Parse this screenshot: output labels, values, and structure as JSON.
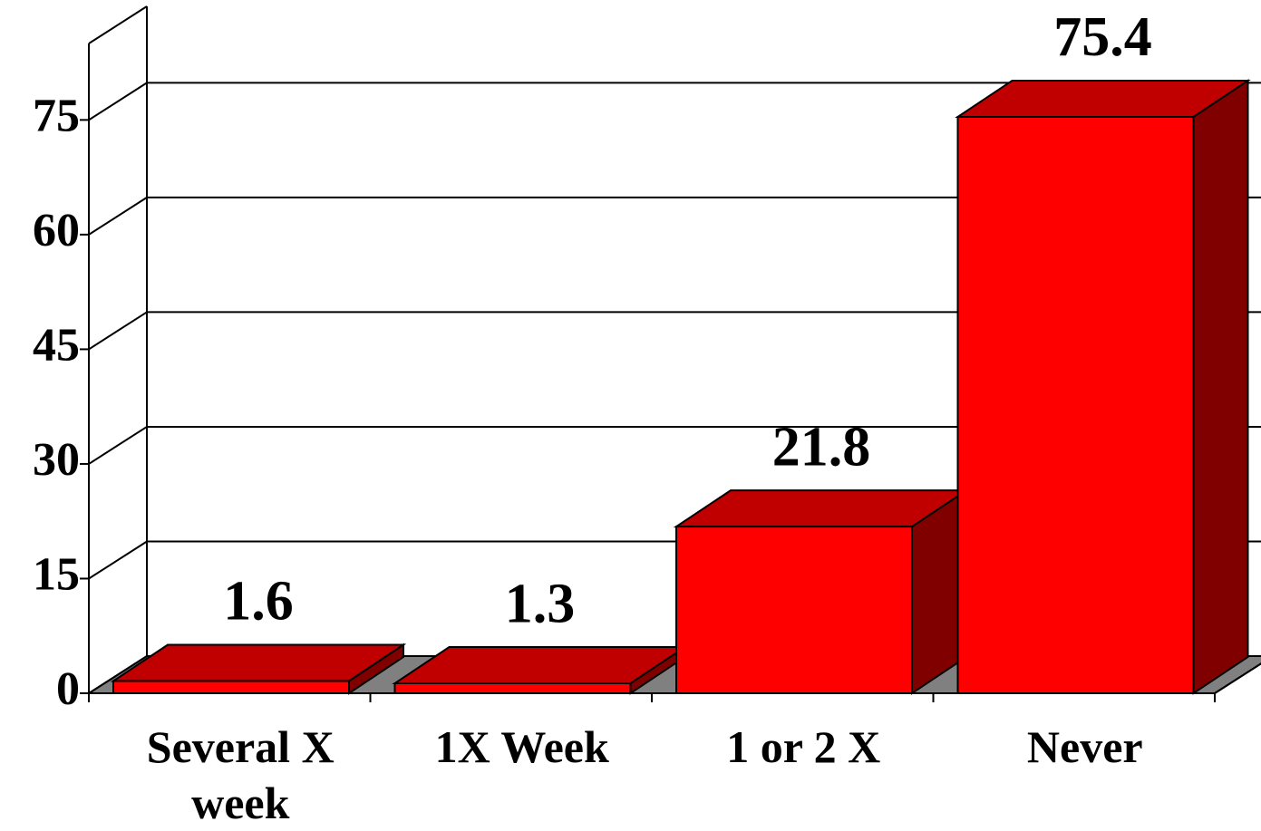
{
  "chart_data": {
    "type": "bar3d",
    "categories": [
      "Several X week",
      "1X Week",
      "1 or 2 X",
      "Never"
    ],
    "values": [
      1.6,
      1.3,
      21.8,
      75.4
    ],
    "color": "#ff0000",
    "ylim": [
      0,
      85
    ],
    "yticks": [
      0,
      15,
      30,
      45,
      60,
      75
    ],
    "grid": true
  }
}
